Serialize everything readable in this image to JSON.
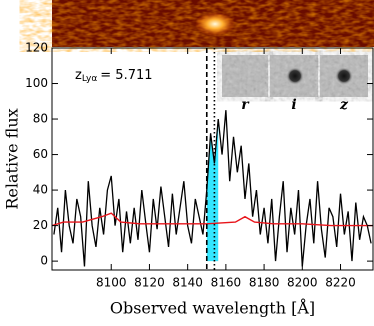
{
  "chart_data": {
    "type": "line",
    "xlabel": "Observed wavelength [Å]",
    "ylabel": "Relative flux",
    "annotation": {
      "symbol": "z",
      "subscript": "Lyα",
      "text": "= 5.711"
    },
    "inset_labels": [
      "r",
      "i",
      "z"
    ],
    "xlim": [
      8069,
      8237
    ],
    "ylim": [
      -5,
      120
    ],
    "xticks": [
      8100,
      8120,
      8140,
      8160,
      8180,
      8200,
      8220
    ],
    "yticks": [
      0,
      20,
      40,
      60,
      80,
      100,
      120
    ],
    "vlines": [
      {
        "x": 8150,
        "style": "dashed"
      },
      {
        "x": 8154,
        "style": "dotted"
      }
    ],
    "highlight_range": [
      8150,
      8156
    ],
    "highlight_color": "#33e6ff",
    "series": [
      {
        "color": "#000000",
        "x": [
          8070,
          8072,
          8074,
          8076,
          8078,
          8080,
          8082,
          8084,
          8086,
          8088,
          8090,
          8092,
          8094,
          8096,
          8098,
          8100,
          8102,
          8104,
          8106,
          8108,
          8110,
          8112,
          8114,
          8116,
          8118,
          8120,
          8122,
          8124,
          8126,
          8128,
          8130,
          8132,
          8134,
          8136,
          8138,
          8140,
          8142,
          8144,
          8146,
          8148,
          8150,
          8152,
          8154,
          8156,
          8158,
          8160,
          8162,
          8164,
          8166,
          8168,
          8170,
          8172,
          8174,
          8176,
          8178,
          8180,
          8182,
          8184,
          8186,
          8188,
          8190,
          8192,
          8194,
          8196,
          8198,
          8200,
          8202,
          8204,
          8206,
          8208,
          8210,
          8212,
          8214,
          8216,
          8218,
          8220,
          8222,
          8224,
          8226,
          8228,
          8230,
          8232,
          8234,
          8236
        ],
        "values": [
          15,
          30,
          5,
          40,
          20,
          10,
          35,
          25,
          -3,
          45,
          20,
          8,
          30,
          15,
          40,
          48,
          20,
          35,
          5,
          28,
          10,
          30,
          12,
          40,
          22,
          5,
          35,
          18,
          42,
          25,
          8,
          38,
          15,
          30,
          45,
          20,
          10,
          35,
          25,
          15,
          40,
          72,
          55,
          80,
          60,
          85,
          45,
          70,
          50,
          65,
          35,
          55,
          25,
          40,
          15,
          30,
          10,
          35,
          0,
          25,
          45,
          5,
          30,
          15,
          40,
          -3,
          20,
          35,
          10,
          45,
          18,
          2,
          30,
          25,
          8,
          38,
          15,
          28,
          0,
          33,
          12,
          25,
          20,
          10
        ]
      },
      {
        "color": "#e8141a",
        "x": [
          8069,
          8075,
          8085,
          8095,
          8100,
          8105,
          8115,
          8130,
          8150,
          8165,
          8170,
          8175,
          8185,
          8200,
          8215,
          8237
        ],
        "values": [
          20,
          22,
          22,
          25,
          27,
          22,
          21,
          21,
          21,
          22,
          25,
          22,
          21,
          21,
          20,
          20
        ]
      }
    ]
  }
}
